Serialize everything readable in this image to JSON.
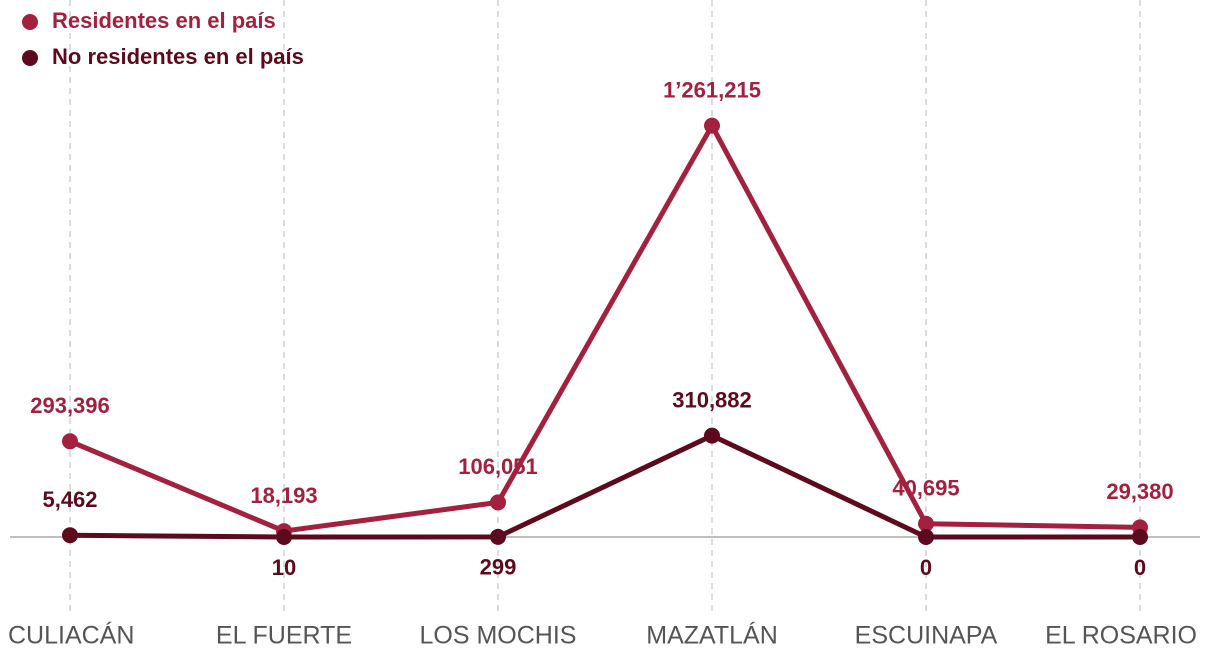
{
  "chart_data": {
    "type": "line",
    "categories": [
      "CULIACÁN",
      "EL FUERTE",
      "LOS MOCHIS",
      "MAZATLÁN",
      "ESCUINAPA",
      "EL ROSARIO"
    ],
    "series": [
      {
        "name": "Residentes en el país",
        "color": "#a3203f",
        "values": [
          293396,
          18193,
          106051,
          1261215,
          40695,
          29380
        ],
        "value_labels": [
          "293,396",
          "18,193",
          "106,051",
          "1’261,215",
          "40,695",
          "29,380"
        ]
      },
      {
        "name": "No residentes en el país",
        "color": "#5e0a1e",
        "values": [
          5462,
          10,
          299,
          310882,
          0,
          0
        ],
        "value_labels": [
          "5,462",
          "10",
          "299",
          "310,882",
          "0",
          "0"
        ]
      }
    ],
    "ylim": [
      0,
      1300000
    ]
  }
}
